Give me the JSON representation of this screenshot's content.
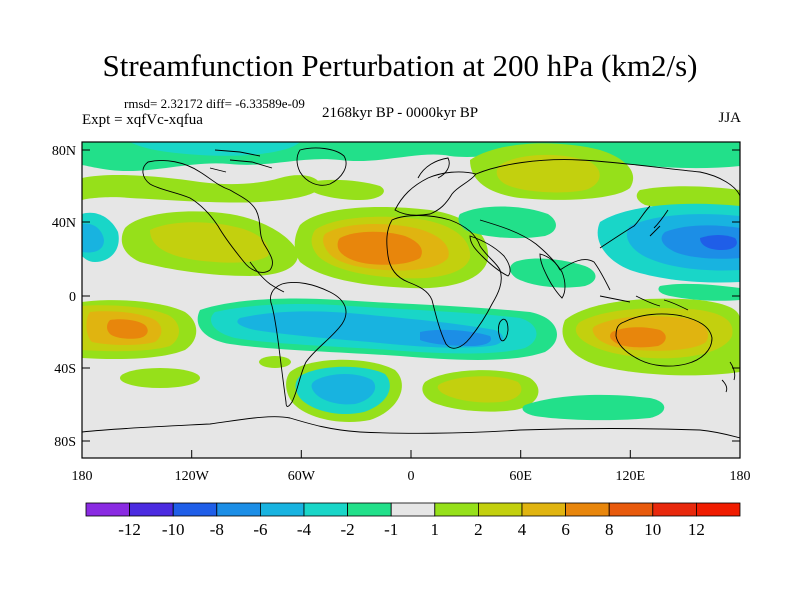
{
  "title": "Streamfunction Perturbation at 200 hPa (km2/s)",
  "stats": "rmsd= 2.32172 diff= -6.33589e-09",
  "left_label": "Expt = xqfVc-xqfua",
  "center_label": "2168kyr BP - 0000kyr BP",
  "right_label": "JJA",
  "lat_ticks": [
    "80N",
    "40N",
    "0",
    "40S",
    "80S"
  ],
  "lon_ticks": [
    "180",
    "120W",
    "60W",
    "0",
    "60E",
    "120E",
    "180"
  ],
  "colorbar": {
    "labels": [
      "-12",
      "-10",
      "-8",
      "-6",
      "-4",
      "-2",
      "-1",
      "1",
      "2",
      "4",
      "6",
      "8",
      "10",
      "12"
    ],
    "colors": [
      "#8a2be2",
      "#4b2be0",
      "#1f5ee8",
      "#1c8ee6",
      "#18b3e0",
      "#19d6c8",
      "#22e08a",
      "#e6e6e6",
      "#96e01a",
      "#c3d00e",
      "#e0b410",
      "#e8860c",
      "#e85a0c",
      "#e8280c",
      "#f01c00"
    ]
  },
  "colors": {
    "background_field": "#e6e6e6",
    "coast": "#000000"
  }
}
